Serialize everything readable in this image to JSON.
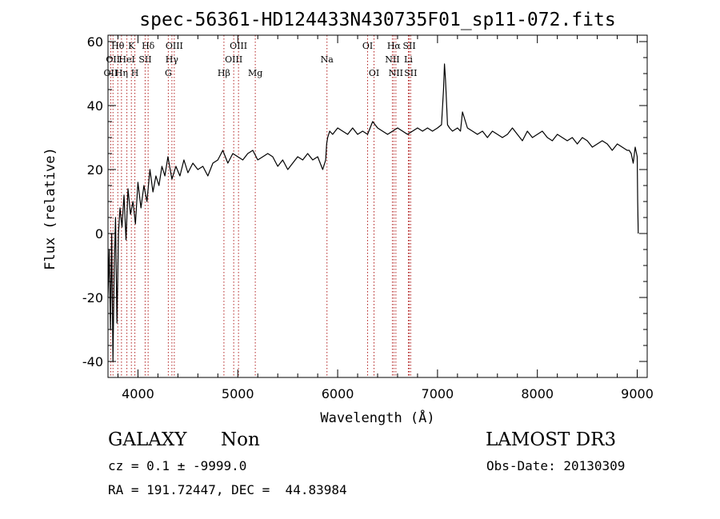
{
  "chart_data": {
    "type": "line",
    "title": "spec-56361-HD124433N430735F01_sp11-072.fits",
    "xlabel": "Wavelength (Å)",
    "ylabel": "Flux (relative)",
    "xlim": [
      3700,
      9100
    ],
    "ylim": [
      -45,
      62
    ],
    "x_ticks": [
      4000,
      5000,
      6000,
      7000,
      8000,
      9000
    ],
    "x_tick_labels": [
      "4000",
      "5000",
      "6000",
      "7000",
      "8000",
      "9000"
    ],
    "y_ticks": [
      -40,
      -20,
      0,
      20,
      40,
      60
    ],
    "y_tick_labels": [
      "-40",
      "-20",
      "0",
      "20",
      "40",
      "60"
    ],
    "line_color": "#000000",
    "marker_color": "#b22222",
    "spectrum": {
      "x": [
        3700,
        3712,
        3725,
        3737,
        3750,
        3762,
        3775,
        3790,
        3805,
        3820,
        3840,
        3860,
        3880,
        3900,
        3925,
        3950,
        3975,
        4000,
        4030,
        4060,
        4090,
        4120,
        4150,
        4180,
        4210,
        4240,
        4270,
        4300,
        4340,
        4380,
        4420,
        4460,
        4500,
        4550,
        4600,
        4650,
        4700,
        4750,
        4800,
        4850,
        4900,
        4950,
        5000,
        5050,
        5100,
        5150,
        5200,
        5250,
        5300,
        5350,
        5400,
        5450,
        5500,
        5550,
        5600,
        5650,
        5700,
        5750,
        5800,
        5850,
        5880,
        5890,
        5900,
        5920,
        5950,
        6000,
        6050,
        6100,
        6150,
        6200,
        6250,
        6300,
        6350,
        6400,
        6450,
        6500,
        6550,
        6600,
        6650,
        6700,
        6750,
        6800,
        6850,
        6900,
        6950,
        7000,
        7040,
        7060,
        7070,
        7080,
        7100,
        7120,
        7150,
        7200,
        7230,
        7250,
        7300,
        7350,
        7400,
        7450,
        7500,
        7550,
        7600,
        7650,
        7700,
        7750,
        7800,
        7850,
        7900,
        7950,
        8000,
        8050,
        8100,
        8150,
        8200,
        8250,
        8300,
        8350,
        8400,
        8450,
        8500,
        8550,
        8600,
        8650,
        8700,
        8750,
        8800,
        8850,
        8900,
        8920,
        8940,
        8960,
        8980,
        9000,
        9005,
        9010
      ],
      "y": [
        -20,
        -5,
        -30,
        0,
        -40,
        -12,
        5,
        -28,
        0,
        8,
        2,
        12,
        -2,
        14,
        6,
        10,
        3,
        16,
        8,
        15,
        10,
        20,
        13,
        18,
        15,
        21,
        18,
        24,
        17,
        21,
        18,
        23,
        19,
        22,
        20,
        21,
        18,
        22,
        23,
        26,
        22,
        25,
        24,
        23,
        25,
        26,
        23,
        24,
        25,
        24,
        21,
        23,
        20,
        22,
        24,
        23,
        25,
        23,
        24,
        20,
        23,
        28,
        30,
        32,
        31,
        33,
        32,
        31,
        33,
        31,
        32,
        31,
        35,
        33,
        32,
        31,
        32,
        33,
        32,
        31,
        32,
        33,
        32,
        33,
        32,
        33,
        34,
        45,
        53,
        48,
        34,
        33,
        32,
        33,
        32,
        38,
        33,
        32,
        31,
        32,
        30,
        32,
        31,
        30,
        31,
        33,
        31,
        29,
        32,
        30,
        31,
        32,
        30,
        29,
        31,
        30,
        29,
        30,
        28,
        30,
        29,
        27,
        28,
        29,
        28,
        26,
        28,
        27,
        26,
        26,
        25,
        22,
        27,
        24,
        10,
        0
      ]
    },
    "lines": [
      {
        "x": 3727,
        "label": "OII",
        "row": 2
      },
      {
        "x": 3750,
        "label": "OII",
        "row": 1
      },
      {
        "x": 3798,
        "label": "Hθ",
        "row": 0
      },
      {
        "x": 3835,
        "label": "Hη",
        "row": 2
      },
      {
        "x": 3889,
        "label": "HeI",
        "row": 1
      },
      {
        "x": 3934,
        "label": "K",
        "row": 0
      },
      {
        "x": 3969,
        "label": "H",
        "row": 2
      },
      {
        "x": 4072,
        "label": "SII",
        "row": 1
      },
      {
        "x": 4102,
        "label": "Hδ",
        "row": 0
      },
      {
        "x": 4304,
        "label": "G",
        "row": 2
      },
      {
        "x": 4340,
        "label": "Hγ",
        "row": 1
      },
      {
        "x": 4364,
        "label": "OIII",
        "row": 0
      },
      {
        "x": 4861,
        "label": "Hβ",
        "row": 2
      },
      {
        "x": 4959,
        "label": "OIII",
        "row": 1
      },
      {
        "x": 5007,
        "label": "OIII",
        "row": 0
      },
      {
        "x": 5175,
        "label": "Mg",
        "row": 2
      },
      {
        "x": 5893,
        "label": "Na",
        "row": 1
      },
      {
        "x": 6300,
        "label": "OI",
        "row": 0
      },
      {
        "x": 6364,
        "label": "OI",
        "row": 2
      },
      {
        "x": 6548,
        "label": "NII",
        "row": 1
      },
      {
        "x": 6563,
        "label": "Hα",
        "row": 0
      },
      {
        "x": 6583,
        "label": "NII",
        "row": 2
      },
      {
        "x": 6708,
        "label": "Li",
        "row": 1
      },
      {
        "x": 6717,
        "label": "SII",
        "row": 0
      },
      {
        "x": 6731,
        "label": "SII",
        "row": 2
      }
    ]
  },
  "footer": {
    "class_label": "GALAXY",
    "subclass_label": "Non",
    "survey_label": "LAMOST DR3",
    "cz_label": "cz = 0.1 ± -9999.0",
    "obs_date_label": "Obs-Date: 20130309",
    "coords_label": "RA = 191.72447, DEC =  44.83984"
  }
}
